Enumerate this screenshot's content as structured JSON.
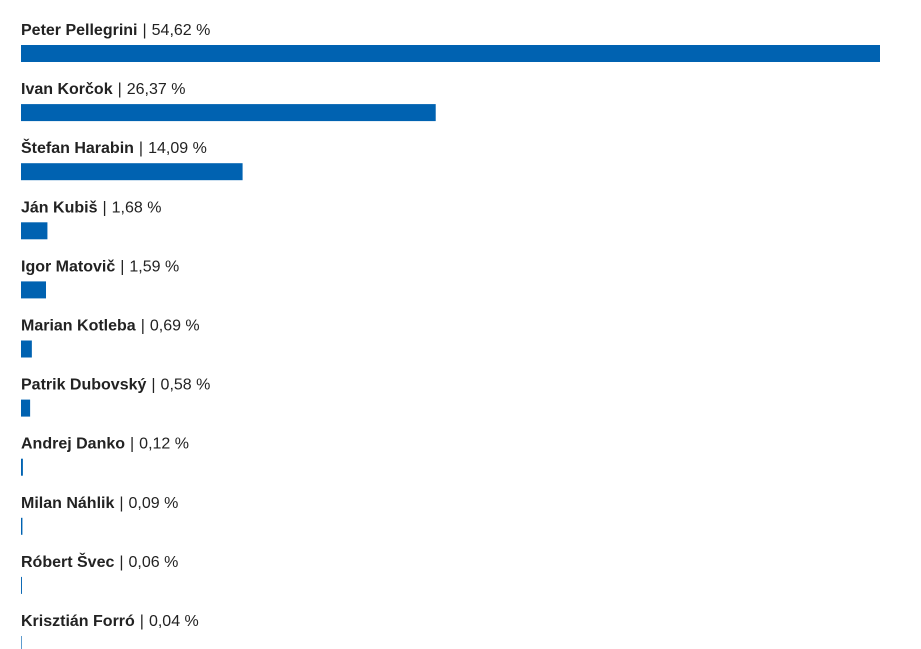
{
  "chart_data": {
    "type": "hbar",
    "categories": [
      "Peter Pellegrini",
      "Ivan Korčok",
      "Štefan Harabin",
      "Ján Kubiš",
      "Igor Matovič",
      "Marian Kotleba",
      "Patrik Dubovský",
      "Andrej Danko",
      "Milan Náhlik",
      "Róbert Švec",
      "Krisztián Forró"
    ],
    "values": [
      54.62,
      26.37,
      14.09,
      1.68,
      1.59,
      0.69,
      0.58,
      0.12,
      0.09,
      0.06,
      0.04
    ],
    "value_labels": [
      "54,62 %",
      "26,37 %",
      "14,09 %",
      "1,68 %",
      "1,59 %",
      "0,69 %",
      "0,58 %",
      "0,12 %",
      "0,09 %",
      "0,06 %",
      "0,04 %"
    ],
    "label_separator": "|",
    "color": "#0062b1"
  }
}
